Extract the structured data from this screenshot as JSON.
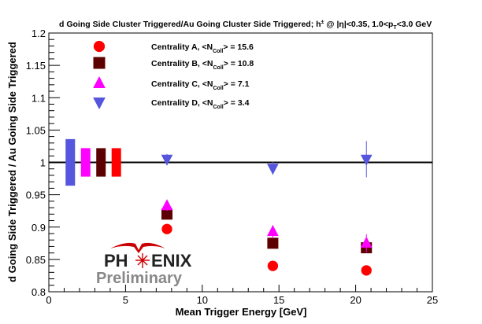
{
  "chart_data": {
    "type": "scatter",
    "title_parts": {
      "main": "d Going Side Cluster Triggered/Au Going Cluster Side Triggered; h",
      "sup": "±",
      "cut1": " @ |η|<0.35, 1.0<p",
      "sub": "T",
      "cut2": "<3.0 GeV"
    },
    "xlabel": "Mean Trigger Energy [GeV]",
    "ylabel": "d Going Side Triggered / Au Going Side Triggered",
    "xlim": [
      0,
      25
    ],
    "ylim": [
      0.8,
      1.2
    ],
    "x_ticks": [
      0,
      5,
      10,
      15,
      20,
      25
    ],
    "x_tick_labels": [
      "0",
      "5",
      "10",
      "15",
      "20",
      "25"
    ],
    "y_ticks": [
      0.8,
      0.85,
      0.9,
      0.95,
      1.0,
      1.05,
      1.1,
      1.15,
      1.2
    ],
    "y_tick_labels": [
      "0.8",
      "0.85",
      "0.9",
      "0.95",
      "1",
      "1.05",
      "1.1",
      "1.15",
      "1.2"
    ],
    "reference_line": 1.0,
    "series": [
      {
        "name": "Centrality A",
        "legend_prefix": "Centrality A, <N",
        "legend_sub": "Coll",
        "legend_suffix": "> = 15.6",
        "marker": "circle",
        "color": "#ff0000",
        "points": [
          {
            "x": 7.7,
            "y": 0.897,
            "err": 0.004
          },
          {
            "x": 14.6,
            "y": 0.84,
            "err": 0.004
          },
          {
            "x": 20.7,
            "y": 0.833,
            "err": 0.004
          }
        ],
        "sys_box": {
          "x": 4.4,
          "low": 0.978,
          "high": 1.022
        }
      },
      {
        "name": "Centrality B",
        "legend_prefix": "Centrality B, <N",
        "legend_sub": "Coll",
        "legend_suffix": "> = 10.8",
        "marker": "square",
        "color": "#5c0000",
        "points": [
          {
            "x": 7.7,
            "y": 0.92,
            "err": 0.006
          },
          {
            "x": 14.6,
            "y": 0.875,
            "err": 0.006
          },
          {
            "x": 20.7,
            "y": 0.868,
            "err": 0.008
          }
        ],
        "sys_box": {
          "x": 3.4,
          "low": 0.978,
          "high": 1.022
        }
      },
      {
        "name": "Centrality C",
        "legend_prefix": "Centrality C, <N",
        "legend_sub": "Coll",
        "legend_suffix": "> = 7.1",
        "marker": "triangle-up",
        "color": "#ff00ff",
        "points": [
          {
            "x": 7.7,
            "y": 0.933,
            "err": 0.008
          },
          {
            "x": 14.6,
            "y": 0.893,
            "err": 0.01
          },
          {
            "x": 20.7,
            "y": 0.875,
            "err": 0.014
          }
        ],
        "sys_box": {
          "x": 2.4,
          "low": 0.978,
          "high": 1.022
        }
      },
      {
        "name": "Centrality D",
        "legend_prefix": "Centrality D, <N",
        "legend_sub": "Coll",
        "legend_suffix": "> = 3.4",
        "marker": "triangle-down",
        "color": "#5555dd",
        "points": [
          {
            "x": 7.7,
            "y": 1.005,
            "err": 0.008
          },
          {
            "x": 14.6,
            "y": 0.991,
            "err": 0.01
          },
          {
            "x": 20.7,
            "y": 1.005,
            "err": 0.028
          }
        ],
        "sys_box": {
          "x": 1.4,
          "low": 0.964,
          "high": 1.036
        }
      }
    ],
    "logo": {
      "text_left": "PH",
      "text_right": "ENIX",
      "subtitle": "Preliminary"
    }
  }
}
